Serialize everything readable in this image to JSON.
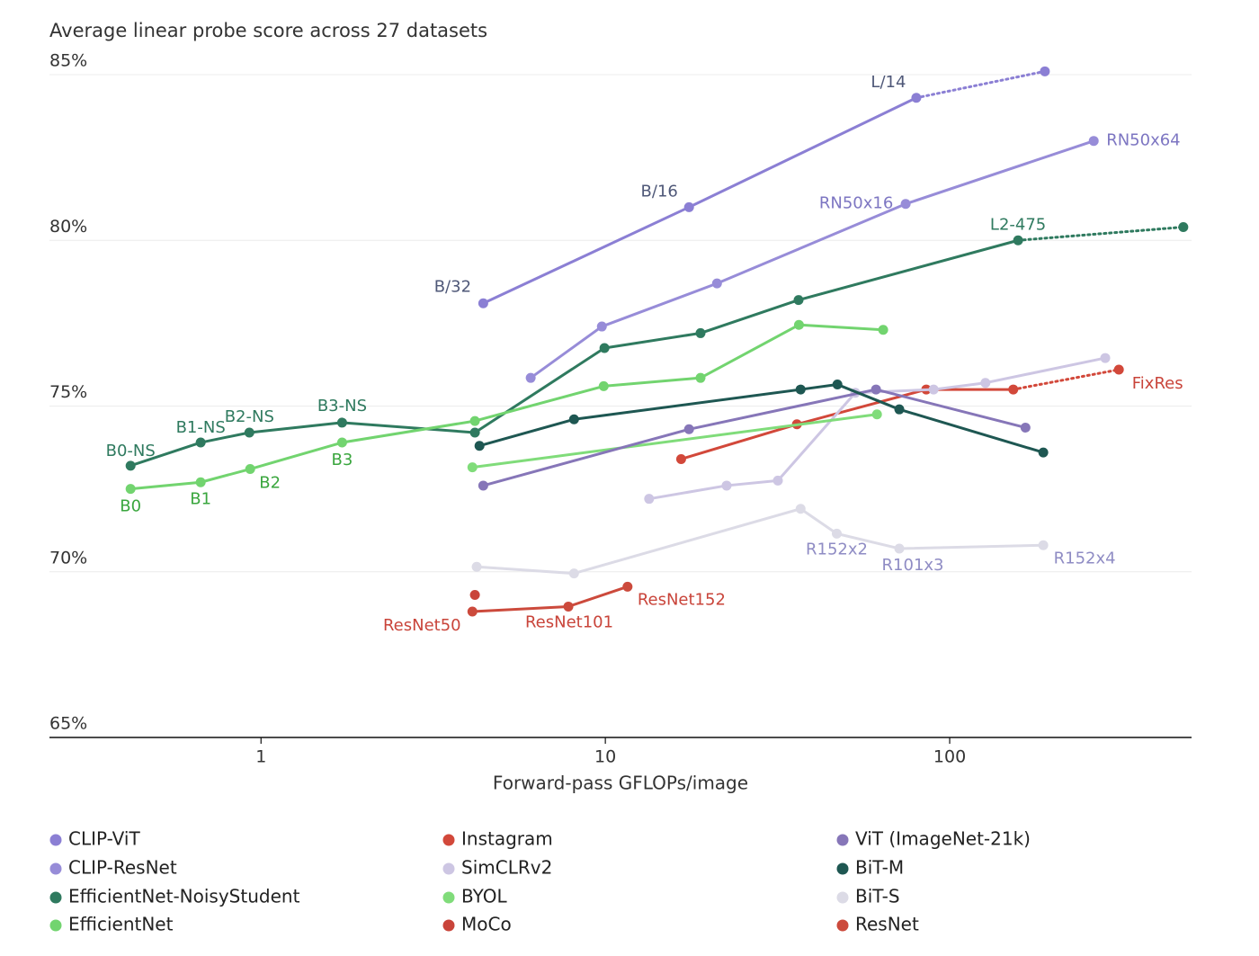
{
  "chart_data": {
    "type": "line",
    "title": "Average linear probe score across 27 datasets",
    "x_label": "Forward-pass GFLOPs/image",
    "x_log": true,
    "xlim": [
      0.243,
      504
    ],
    "xticks": [
      1,
      10,
      100
    ],
    "ylim": [
      65,
      85
    ],
    "yticks": [
      {
        "value": 65,
        "label": "65%"
      },
      {
        "value": 70,
        "label": "70%"
      },
      {
        "value": 75,
        "label": "75%"
      },
      {
        "value": 80,
        "label": "80%"
      },
      {
        "value": 85,
        "label": "85%"
      }
    ],
    "grid": true,
    "legend": "bottom",
    "series": [
      {
        "name": "CLIP-ViT",
        "color": "#8b7fd4",
        "label_color": "#4f5878",
        "dotted_last_segment": true,
        "x": [
          4.42,
          17.5,
          80,
          189
        ],
        "values": [
          78.1,
          81.0,
          84.3,
          85.1
        ],
        "point_labels": [
          "B/32",
          "B/16",
          "L/14",
          null
        ]
      },
      {
        "name": "CLIP-ResNet",
        "color": "#978cd8",
        "label_color": "#7d76c2",
        "dotted_last_segment": false,
        "x": [
          6.07,
          9.77,
          21.1,
          74.5,
          262
        ],
        "values": [
          75.85,
          77.4,
          78.7,
          81.1,
          83.0
        ],
        "point_labels": [
          null,
          null,
          null,
          "RN50x16",
          "RN50x64"
        ]
      },
      {
        "name": "EfficientNet-NoisyStudent",
        "color": "#2f7a5f",
        "label_color": "#2f7a5f",
        "dotted_last_segment": true,
        "x": [
          0.418,
          0.668,
          0.925,
          1.72,
          4.18,
          9.94,
          18.9,
          36.4,
          158,
          477
        ],
        "values": [
          73.2,
          73.9,
          74.2,
          74.5,
          74.2,
          76.75,
          77.2,
          78.2,
          80.0,
          80.4
        ],
        "point_labels": [
          "B0-NS",
          "B1-NS",
          "B2-NS",
          "B3-NS",
          null,
          null,
          null,
          null,
          "L2-475",
          null
        ]
      },
      {
        "name": "EfficientNet",
        "color": "#72d46f",
        "label_color": "#3aa63e",
        "dotted_last_segment": false,
        "x": [
          0.418,
          0.668,
          0.93,
          1.72,
          4.18,
          9.89,
          18.9,
          36.5,
          64.1
        ],
        "values": [
          72.5,
          72.7,
          73.1,
          73.9,
          74.55,
          75.6,
          75.85,
          77.45,
          77.3
        ],
        "point_labels": [
          "B0",
          "B1",
          "B2",
          "B3",
          null,
          null,
          null,
          null,
          null
        ]
      },
      {
        "name": "Instagram",
        "color": "#d2483a",
        "label_color": "#c9443a",
        "dotted_last_segment": true,
        "x": [
          16.6,
          36.0,
          85.5,
          153,
          310
        ],
        "values": [
          73.4,
          74.45,
          75.5,
          75.5,
          76.1
        ],
        "point_labels": [
          null,
          null,
          null,
          null,
          "FixRes"
        ]
      },
      {
        "name": "SimCLRv2",
        "color": "#cdc6e3",
        "label_color": "#8f8cc4",
        "dotted_last_segment": false,
        "x": [
          13.4,
          22.5,
          31.7,
          53.2,
          89.8,
          127,
          283
        ],
        "values": [
          72.2,
          72.6,
          72.75,
          75.4,
          75.5,
          75.7,
          76.45
        ],
        "point_labels": [
          null,
          null,
          null,
          null,
          null,
          null,
          null
        ]
      },
      {
        "name": "BYOL",
        "color": "#80dc7a",
        "label_color": "#3aa63e",
        "dotted_last_segment": false,
        "x": [
          4.11,
          61.5
        ],
        "values": [
          73.15,
          74.75
        ],
        "point_labels": [
          null,
          null
        ]
      },
      {
        "name": "MoCo",
        "color": "#c9443a",
        "label_color": "#c9443a",
        "dotted_last_segment": false,
        "x": [
          4.18
        ],
        "values": [
          69.3
        ],
        "point_labels": [
          null
        ]
      },
      {
        "name": "ViT (ImageNet-21k)",
        "color": "#8676b8",
        "label_color": "#8676b8",
        "dotted_last_segment": false,
        "x": [
          4.42,
          17.5,
          61.1,
          166
        ],
        "values": [
          72.6,
          74.3,
          75.5,
          74.35
        ],
        "point_labels": [
          null,
          null,
          null,
          null
        ]
      },
      {
        "name": "BiT-M",
        "color": "#1e5752",
        "label_color": "#1e5752",
        "dotted_last_segment": false,
        "x": [
          4.31,
          8.11,
          36.9,
          47.2,
          71.4,
          187
        ],
        "values": [
          73.8,
          74.6,
          75.5,
          75.65,
          74.9,
          73.6
        ],
        "point_labels": [
          null,
          null,
          null,
          null,
          null,
          null
        ]
      },
      {
        "name": "BiT-S",
        "color": "#dcdbe6",
        "label_color": "#8f8cc4",
        "dotted_last_segment": false,
        "x": [
          4.23,
          8.11,
          36.9,
          47.0,
          71.4,
          187
        ],
        "values": [
          70.15,
          69.95,
          71.9,
          71.15,
          70.7,
          70.8
        ],
        "point_labels": [
          null,
          null,
          null,
          "R152x2",
          "R101x3",
          "R152x4"
        ]
      },
      {
        "name": "ResNet",
        "color": "#cc4a3c",
        "label_color": "#c9443a",
        "dotted_last_segment": false,
        "x": [
          4.11,
          7.81,
          11.6
        ],
        "values": [
          68.8,
          68.95,
          69.55
        ],
        "point_labels": [
          "ResNet50",
          "ResNet101",
          "ResNet152"
        ]
      }
    ]
  }
}
